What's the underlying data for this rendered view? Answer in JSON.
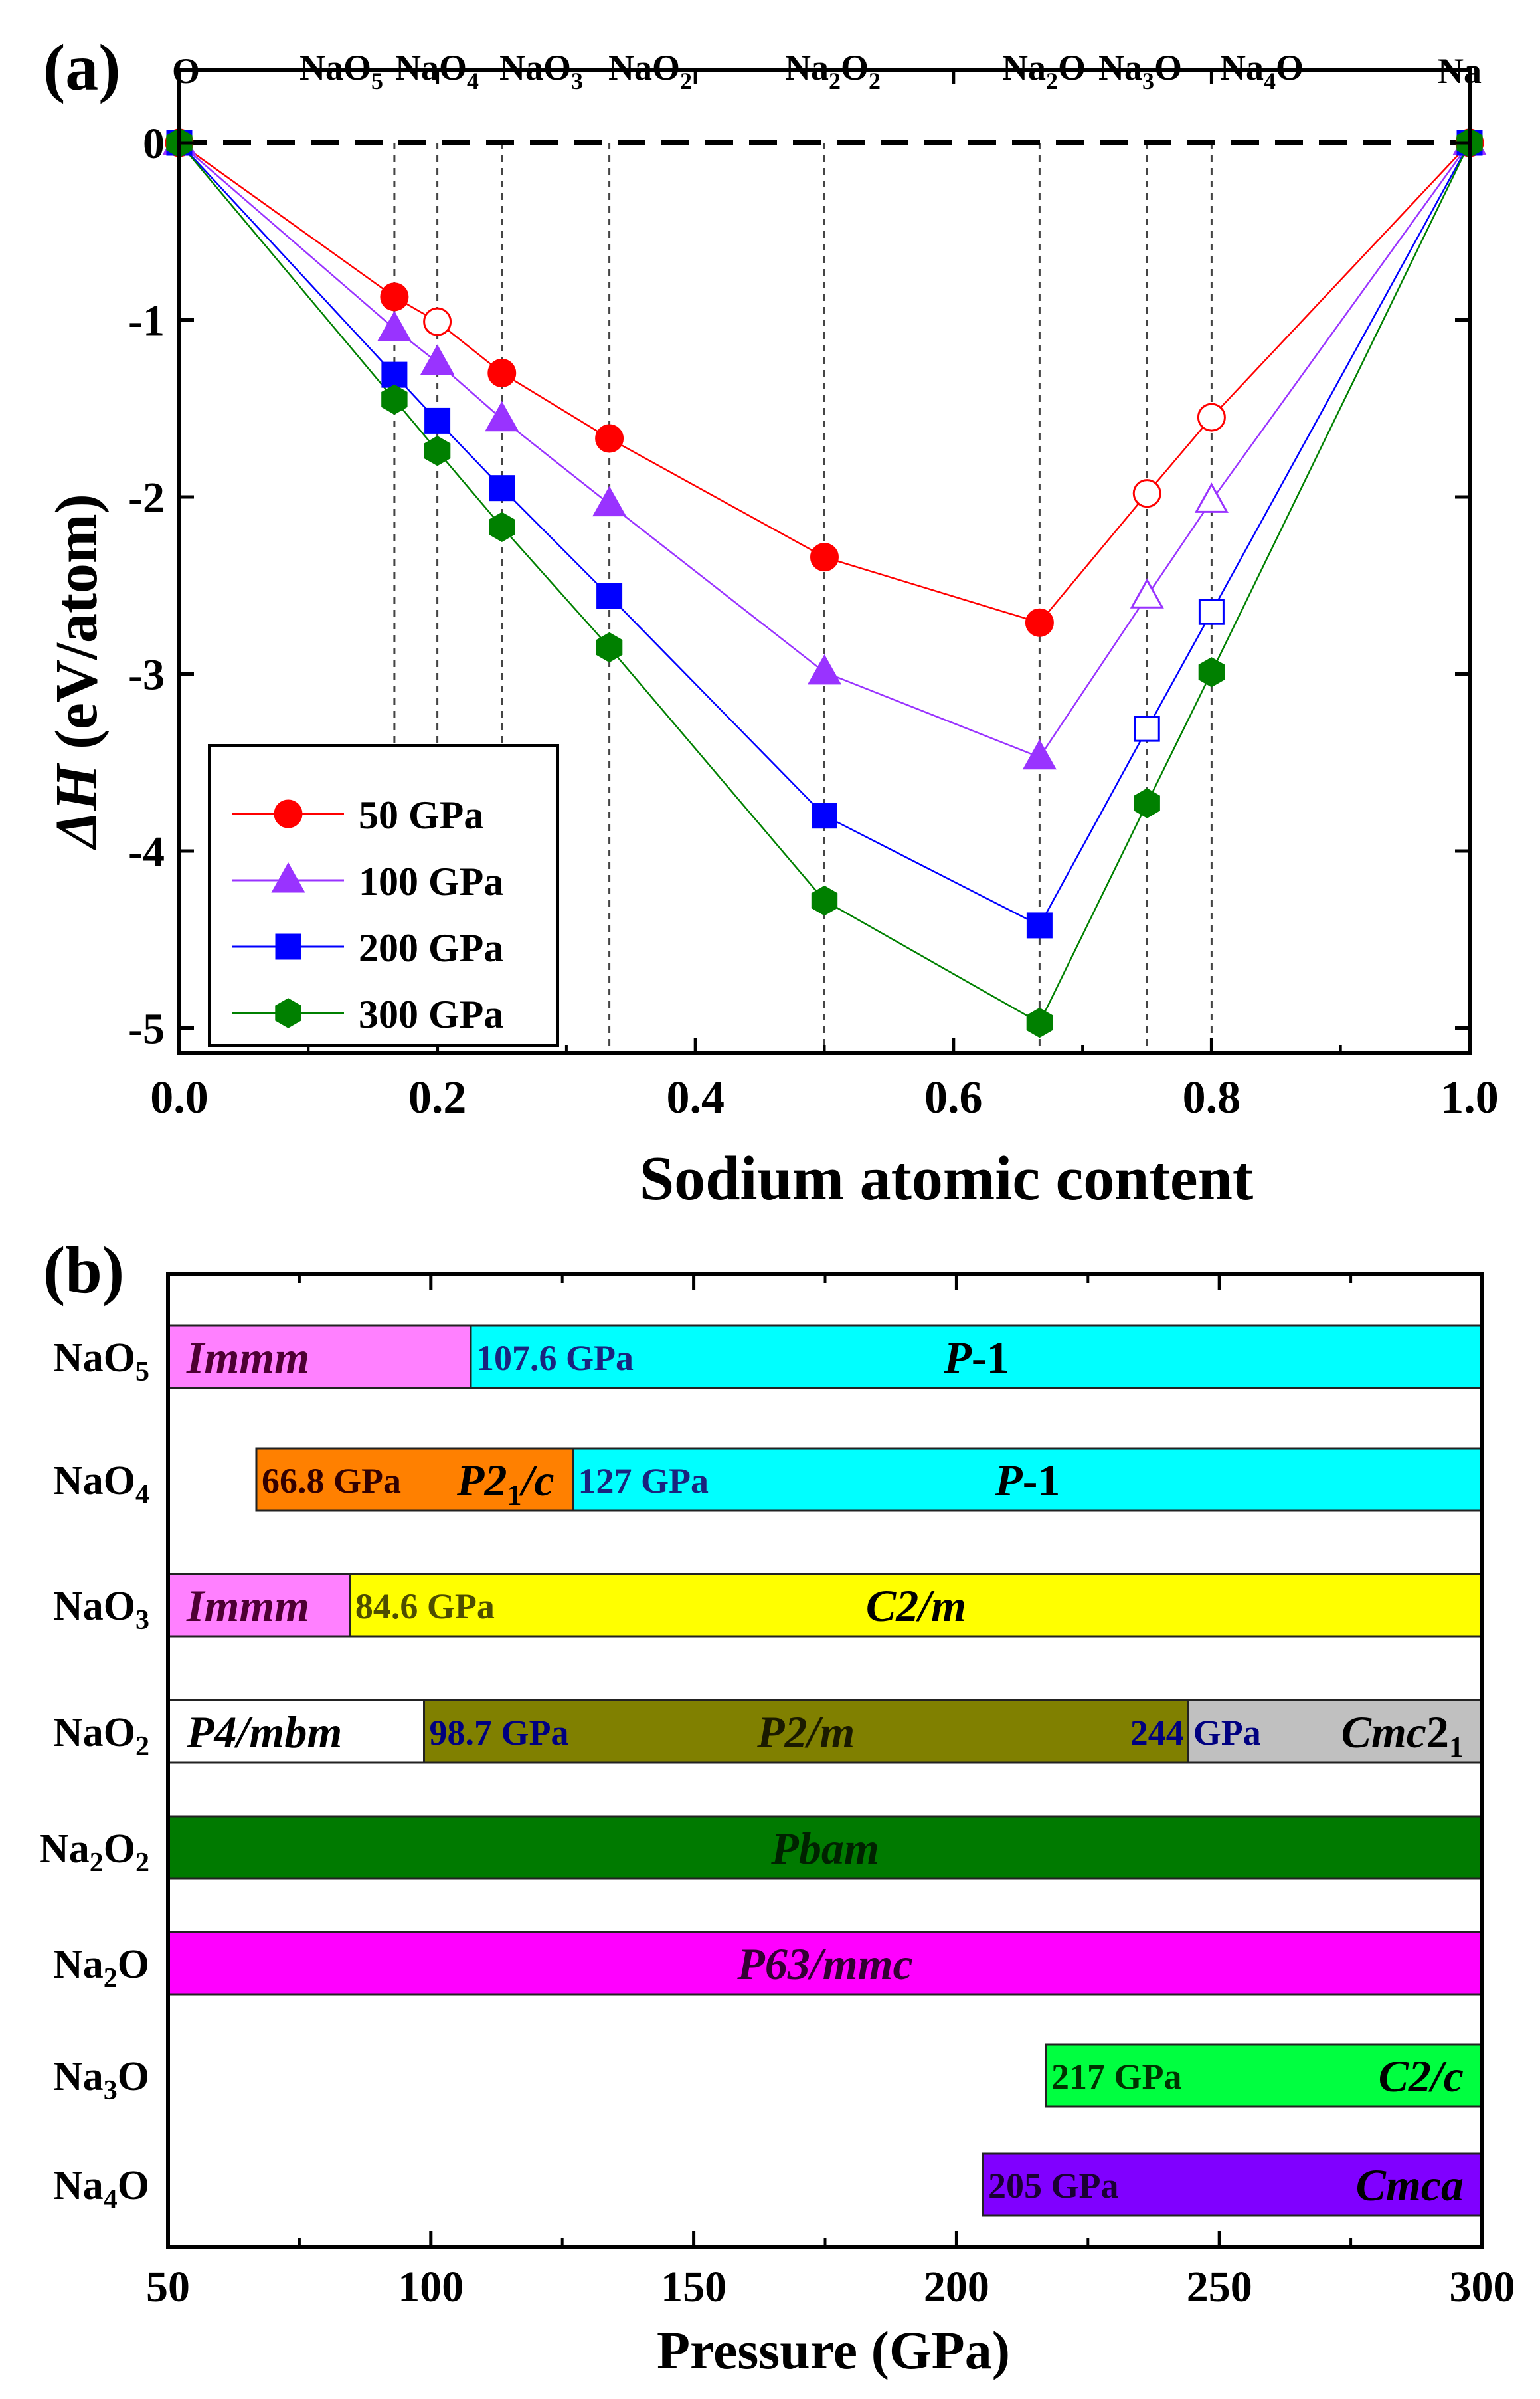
{
  "chart_data": [
    {
      "panel_label": "(a)",
      "type": "line",
      "xlabel": "Sodium atomic content",
      "ylabel": "ΔH (eV/atom)",
      "xlim": [
        0.0,
        1.0
      ],
      "ylim": [
        -5.2,
        0.5
      ],
      "x_ticks": [
        "0.0",
        "0.2",
        "0.4",
        "0.6",
        "0.8",
        "1.0"
      ],
      "y_ticks": [
        "0",
        "-1",
        "-2",
        "-3",
        "-4",
        "-5"
      ],
      "reference_line_y": 0,
      "end_labels": {
        "left": "O",
        "right": "Na"
      },
      "compounds": [
        {
          "x": 0.1667,
          "base": "NaO",
          "sub": "5",
          "base2": "",
          "sub2": ""
        },
        {
          "x": 0.2,
          "base": "NaO",
          "sub": "4",
          "base2": "",
          "sub2": ""
        },
        {
          "x": 0.25,
          "base": "NaO",
          "sub": "3",
          "base2": "",
          "sub2": ""
        },
        {
          "x": 0.3333,
          "base": "NaO",
          "sub": "2",
          "base2": "",
          "sub2": ""
        },
        {
          "x": 0.5,
          "base": "Na",
          "sub": "2",
          "base2": "O",
          "sub2": "2"
        },
        {
          "x": 0.6667,
          "base": "Na",
          "sub": "2",
          "base2": "O",
          "sub2": ""
        },
        {
          "x": 0.75,
          "base": "Na",
          "sub": "3",
          "base2": "O",
          "sub2": ""
        },
        {
          "x": 0.8,
          "base": "Na",
          "sub": "4",
          "base2": "O",
          "sub2": ""
        }
      ],
      "series": [
        {
          "name": "50 GPa",
          "color": "#ff0000",
          "marker": "circle",
          "x": [
            0,
            0.1667,
            0.2,
            0.25,
            0.3333,
            0.5,
            0.6667,
            0.75,
            0.8,
            1.0
          ],
          "y": [
            0,
            -0.87,
            -1.01,
            -1.3,
            -1.67,
            -2.34,
            -2.71,
            -1.98,
            -1.55,
            0
          ],
          "filled": [
            true,
            true,
            false,
            true,
            true,
            true,
            true,
            false,
            false,
            true
          ]
        },
        {
          "name": "100 GPa",
          "color": "#9933ff",
          "marker": "triangle",
          "x": [
            0,
            0.1667,
            0.2,
            0.25,
            0.3333,
            0.5,
            0.6667,
            0.75,
            0.8,
            1.0
          ],
          "y": [
            0,
            -1.05,
            -1.24,
            -1.56,
            -2.04,
            -2.99,
            -3.47,
            -2.56,
            -2.02,
            0
          ],
          "filled": [
            true,
            true,
            true,
            true,
            true,
            true,
            true,
            false,
            false,
            true
          ]
        },
        {
          "name": "200 GPa",
          "color": "#0000ff",
          "marker": "square",
          "x": [
            0,
            0.1667,
            0.2,
            0.25,
            0.3333,
            0.5,
            0.6667,
            0.75,
            0.8,
            1.0
          ],
          "y": [
            0,
            -1.31,
            -1.57,
            -1.95,
            -2.56,
            -3.8,
            -4.42,
            -3.31,
            -2.65,
            0
          ],
          "filled": [
            true,
            true,
            true,
            true,
            true,
            true,
            true,
            false,
            false,
            true
          ]
        },
        {
          "name": "300 GPa",
          "color": "#008000",
          "marker": "hexagon",
          "x": [
            0,
            0.1667,
            0.2,
            0.25,
            0.3333,
            0.5,
            0.6667,
            0.75,
            0.8,
            1.0
          ],
          "y": [
            0,
            -1.45,
            -1.74,
            -2.17,
            -2.85,
            -4.28,
            -4.97,
            -3.73,
            -2.99,
            0
          ],
          "filled": [
            true,
            true,
            true,
            true,
            true,
            true,
            true,
            true,
            true,
            true
          ]
        }
      ]
    },
    {
      "panel_label": "(b)",
      "type": "bar",
      "xlabel": "Pressure (GPa)",
      "xlim": [
        50,
        300
      ],
      "x_ticks": [
        "50",
        "100",
        "150",
        "200",
        "250",
        "300"
      ],
      "rows": [
        {
          "base": "NaO",
          "sub": "5",
          "base2": "",
          "sub2": "",
          "segments": [
            {
              "start": 50,
              "end": 107.6,
              "color": "#ff80ff",
              "label": "Immm",
              "label_pos": "left",
              "label_color": "#4d0033"
            },
            {
              "start": 107.6,
              "end": 300,
              "color": "#00ffff",
              "label": "P-1",
              "label_pos": "center",
              "label_color": "#000000",
              "pressure_label": "107.6 GPa",
              "pressure_color": "#1a237e"
            }
          ]
        },
        {
          "base": "NaO",
          "sub": "4",
          "base2": "",
          "sub2": "",
          "segments": [
            {
              "start": 66.8,
              "end": 127,
              "color": "#ff8000",
              "label": "P21/c",
              "label_pos": "right",
              "label_color": "#000000",
              "pressure_label": "66.8 GPa",
              "pressure_color": "#330000"
            },
            {
              "start": 127,
              "end": 300,
              "color": "#00ffff",
              "label": "P-1",
              "label_pos": "center",
              "label_color": "#000000",
              "pressure_label": "127 GPa",
              "pressure_color": "#1a237e"
            }
          ]
        },
        {
          "base": "NaO",
          "sub": "3",
          "base2": "",
          "sub2": "",
          "segments": [
            {
              "start": 50,
              "end": 84.6,
              "color": "#ff80ff",
              "label": "Immm",
              "label_pos": "left",
              "label_color": "#4d0033"
            },
            {
              "start": 84.6,
              "end": 300,
              "color": "#ffff00",
              "label": "C2/m",
              "label_pos": "center",
              "label_color": "#000000",
              "pressure_label": "84.6 GPa",
              "pressure_color": "#4d4d00"
            }
          ]
        },
        {
          "base": "NaO",
          "sub": "2",
          "base2": "",
          "sub2": "",
          "segments": [
            {
              "start": 50,
              "end": 98.7,
              "color": "#ffffff",
              "label": "P4/mbm",
              "label_pos": "left",
              "label_color": "#000000"
            },
            {
              "start": 98.7,
              "end": 244,
              "color": "#808000",
              "label": "P2/m",
              "label_pos": "center",
              "label_color": "#1a1a00",
              "pressure_label": "98.7 GPa",
              "pressure_color": "#000080",
              "end_label": "244"
            },
            {
              "start": 244,
              "end": 300,
              "color": "#c0c0c0",
              "label": "Cmc21",
              "label_pos": "right",
              "label_color": "#000000",
              "pressure_label": "GPa",
              "pressure_color": "#000080"
            }
          ]
        },
        {
          "base": "Na",
          "sub": "2",
          "base2": "O",
          "sub2": "2",
          "segments": [
            {
              "start": 50,
              "end": 300,
              "color": "#007a00",
              "label": "Pbam",
              "label_pos": "center",
              "label_color": "#002200"
            }
          ]
        },
        {
          "base": "Na",
          "sub": "2",
          "base2": "O",
          "sub2": "",
          "segments": [
            {
              "start": 50,
              "end": 300,
              "color": "#ff00ff",
              "label": "P63/mmc",
              "label_pos": "center",
              "label_color": "#330033"
            }
          ]
        },
        {
          "base": "Na",
          "sub": "3",
          "base2": "O",
          "sub2": "",
          "segments": [
            {
              "start": 217,
              "end": 300,
              "color": "#00ff40",
              "label": "C2/c",
              "label_pos": "right",
              "label_color": "#000000",
              "pressure_label": "217 GPa",
              "pressure_color": "#003300"
            }
          ]
        },
        {
          "base": "Na",
          "sub": "4",
          "base2": "O",
          "sub2": "",
          "segments": [
            {
              "start": 205,
              "end": 300,
              "color": "#8000ff",
              "label": "Cmca",
              "label_pos": "right",
              "label_color": "#000000",
              "pressure_label": "205 GPa",
              "pressure_color": "#1a0033"
            }
          ]
        }
      ]
    }
  ]
}
